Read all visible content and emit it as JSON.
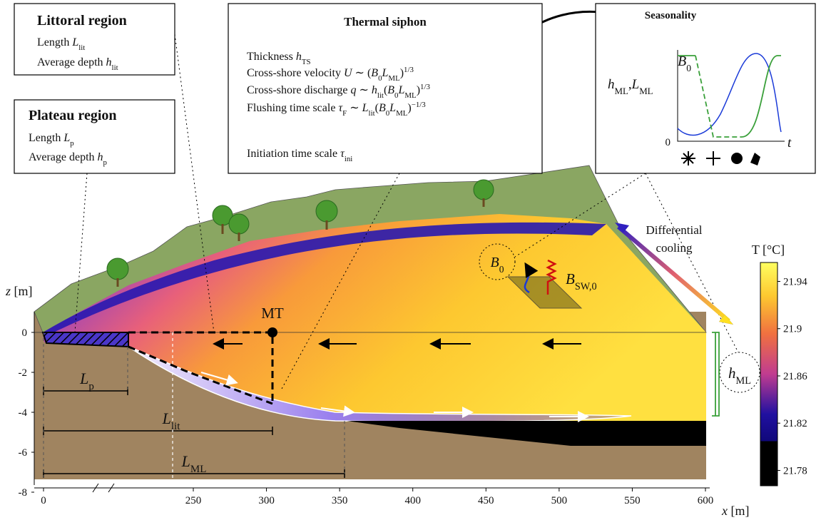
{
  "boxes": {
    "littoral": {
      "title": "Littoral region",
      "lines": [
        [
          {
            "text": "Length "
          },
          {
            "math": "L"
          },
          {
            "sub": "lit"
          }
        ],
        [
          {
            "text": "Average depth "
          },
          {
            "math": "h"
          },
          {
            "sub": "lit"
          }
        ]
      ]
    },
    "plateau": {
      "title": "Plateau region",
      "lines": [
        [
          {
            "text": "Length "
          },
          {
            "math": "L"
          },
          {
            "sub": "p"
          }
        ],
        [
          {
            "text": "Average depth "
          },
          {
            "math": "h"
          },
          {
            "sub": "p"
          }
        ]
      ]
    },
    "siphon": {
      "title": "Thermal siphon",
      "lines": [
        [
          {
            "text": "Thickness "
          },
          {
            "math": "h"
          },
          {
            "sub": "TS"
          }
        ],
        [
          {
            "text": "Cross-shore velocity "
          },
          {
            "math": "U"
          },
          {
            "text": " ∼ ("
          },
          {
            "math": "B"
          },
          {
            "sub": "0"
          },
          {
            "math": "L"
          },
          {
            "sub": "ML"
          },
          {
            "text": ")"
          },
          {
            "sup": "1/3"
          }
        ],
        [
          {
            "text": "Cross-shore discharge "
          },
          {
            "math": "q"
          },
          {
            "text": " ∼ "
          },
          {
            "math": "h"
          },
          {
            "sub": "lit"
          },
          {
            "text": "("
          },
          {
            "math": "B"
          },
          {
            "sub": "0"
          },
          {
            "math": "L"
          },
          {
            "sub": "ML"
          },
          {
            "text": ")"
          },
          {
            "sup": "1/3"
          }
        ],
        [
          {
            "text": "Flushing time scale "
          },
          {
            "math": "τ"
          },
          {
            "sub": "F"
          },
          {
            "text": " ∼ "
          },
          {
            "math": "L"
          },
          {
            "sub": "lit"
          },
          {
            "text": "("
          },
          {
            "math": "B"
          },
          {
            "sub": "0"
          },
          {
            "math": "L"
          },
          {
            "sub": "ML"
          },
          {
            "text": ")"
          },
          {
            "sup": "−1/3"
          }
        ],
        [
          {
            "text": "Initiation time scale "
          },
          {
            "math": "τ"
          },
          {
            "sub": "ini"
          }
        ]
      ]
    },
    "seasonality": {
      "title": "Seasonality",
      "b0": [
        {
          "math": "B"
        },
        {
          "sub": "0"
        }
      ],
      "hml": [
        {
          "math": "h"
        },
        {
          "sub": "ML"
        },
        {
          "text": ","
        },
        {
          "math": "L"
        },
        {
          "sub": "ML"
        }
      ],
      "t": [
        {
          "math": "t"
        }
      ],
      "origin": "0"
    }
  },
  "scene": {
    "mt": "MT",
    "cooling": [
      "Differential",
      "cooling"
    ],
    "b0": [
      {
        "math": "B"
      },
      {
        "sub": "0"
      }
    ],
    "bsw": [
      {
        "math": "B"
      },
      {
        "sub": "SW,0"
      }
    ],
    "hml": [
      {
        "math": "h"
      },
      {
        "sub": "ML"
      }
    ],
    "lp": [
      {
        "math": "L"
      },
      {
        "sub": "p"
      }
    ],
    "llit": [
      {
        "math": "L"
      },
      {
        "sub": "lit"
      }
    ],
    "lml": [
      {
        "math": "L"
      },
      {
        "sub": "ML"
      }
    ]
  },
  "axes": {
    "z_label": [
      {
        "math": "z"
      },
      {
        "text": " [m]"
      }
    ],
    "zticks": [
      0,
      -2,
      -4,
      -6,
      -8
    ],
    "x_label": [
      {
        "math": "x"
      },
      {
        "text": " [m]"
      }
    ],
    "xticks": [
      0,
      250,
      300,
      350,
      400,
      450,
      500,
      550,
      600
    ]
  },
  "colorbar": {
    "title": "T [°C]",
    "lim": [
      21.767,
      21.956
    ],
    "ticks": [
      21.94,
      21.9,
      21.86,
      21.82,
      21.78
    ]
  }
}
